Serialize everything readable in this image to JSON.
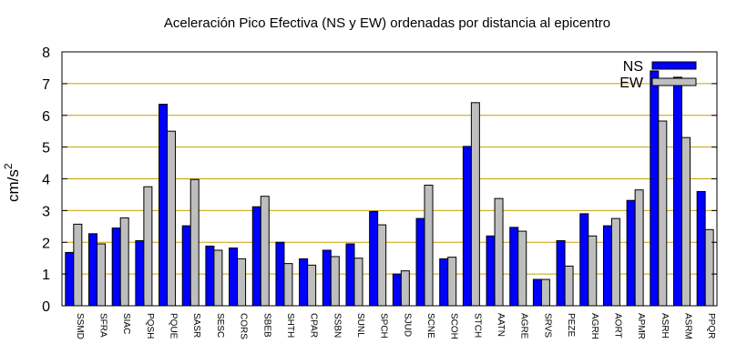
{
  "chart_data": {
    "type": "bar",
    "title": "Aceleración Pico Efectiva (NS y EW) ordenadas por distancia al epicentro",
    "xlabel": "",
    "ylabel": "cm/s",
    "ylabel_sup": "2",
    "ylim": [
      0,
      8
    ],
    "yticks": [
      "0",
      "1",
      "2",
      "3",
      "4",
      "5",
      "6",
      "7",
      "8"
    ],
    "grid": true,
    "legend_position": "top-right",
    "categories": [
      "SSMD",
      "SFRA",
      "SIAC",
      "PQSH",
      "PQUE",
      "SASR",
      "SESC",
      "CORS",
      "SBEB",
      "SHTH",
      "CPAR",
      "SSBN",
      "SUNL",
      "SPCH",
      "SJUD",
      "SCNE",
      "SCOH",
      "STCH",
      "AATN",
      "AGRE",
      "SRVS",
      "PEZE",
      "AGRH",
      "AORT",
      "APMR",
      "ASRH",
      "ASRM",
      "PPQR"
    ],
    "series": [
      {
        "name": "NS",
        "color": "#0000ff",
        "values": [
          1.68,
          2.27,
          2.45,
          2.05,
          6.35,
          2.52,
          1.88,
          1.82,
          3.12,
          2.0,
          1.48,
          1.75,
          1.95,
          2.97,
          1.0,
          2.75,
          1.48,
          5.02,
          2.2,
          2.47,
          0.83,
          2.05,
          2.9,
          2.52,
          3.32,
          7.4,
          7.2,
          3.6
        ]
      },
      {
        "name": "EW",
        "color": "#bebebe",
        "values": [
          2.57,
          1.95,
          2.77,
          3.75,
          5.5,
          3.98,
          1.75,
          1.48,
          3.45,
          1.33,
          1.28,
          1.55,
          1.5,
          2.55,
          1.1,
          3.8,
          1.53,
          6.4,
          3.38,
          2.35,
          0.83,
          1.25,
          2.2,
          2.75,
          3.65,
          5.82,
          5.3,
          2.4
        ]
      }
    ]
  }
}
